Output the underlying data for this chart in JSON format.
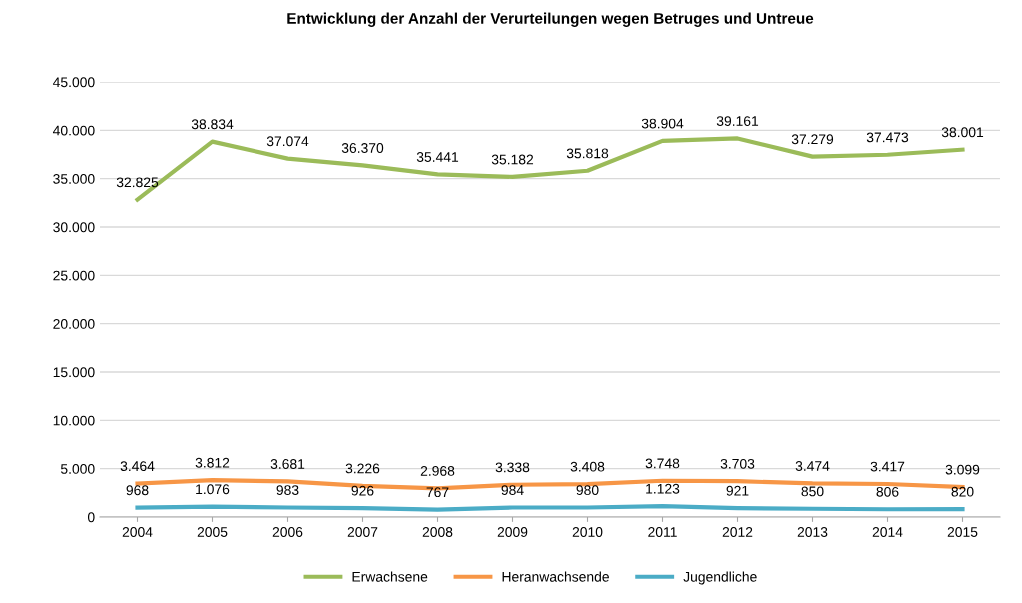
{
  "chart_data": {
    "type": "line",
    "title": "Entwicklung der Anzahl der Verurteilungen wegen Betruges und Untreue",
    "categories": [
      "2004",
      "2005",
      "2006",
      "2007",
      "2008",
      "2009",
      "2010",
      "2011",
      "2012",
      "2013",
      "2014",
      "2015"
    ],
    "series": [
      {
        "name": "Erwachsene",
        "color": "#9bbb59",
        "values": [
          32825,
          38834,
          37074,
          36370,
          35441,
          35182,
          35818,
          38904,
          39161,
          37279,
          37473,
          38001
        ],
        "value_labels": [
          "32.825",
          "38.834",
          "37.074",
          "36.370",
          "35.441",
          "35.182",
          "35.818",
          "38.904",
          "39.161",
          "37.279",
          "37.473",
          "38.001"
        ]
      },
      {
        "name": "Heranwachsende",
        "color": "#f79646",
        "values": [
          3464,
          3812,
          3681,
          3226,
          2968,
          3338,
          3408,
          3748,
          3703,
          3474,
          3417,
          3099
        ],
        "value_labels": [
          "3.464",
          "3.812",
          "3.681",
          "3.226",
          "2.968",
          "3.338",
          "3.408",
          "3.748",
          "3.703",
          "3.474",
          "3.417",
          "3.099"
        ]
      },
      {
        "name": "Jugendliche",
        "color": "#4bacc6",
        "values": [
          968,
          1076,
          983,
          926,
          767,
          984,
          980,
          1123,
          921,
          850,
          806,
          820
        ],
        "value_labels": [
          "968",
          "1.076",
          "983",
          "926",
          "767",
          "984",
          "980",
          "1.123",
          "921",
          "850",
          "806",
          "820"
        ]
      }
    ],
    "ylim": [
      0,
      45000
    ],
    "yticks": [
      {
        "value": 0,
        "label": "0"
      },
      {
        "value": 5000,
        "label": "5.000"
      },
      {
        "value": 10000,
        "label": "10.000"
      },
      {
        "value": 15000,
        "label": "15.000"
      },
      {
        "value": 20000,
        "label": "20.000"
      },
      {
        "value": 25000,
        "label": "25.000"
      },
      {
        "value": 30000,
        "label": "30.000"
      },
      {
        "value": 35000,
        "label": "35.000"
      },
      {
        "value": 40000,
        "label": "40.000"
      },
      {
        "value": 45000,
        "label": "45.000"
      }
    ],
    "grid": "y",
    "legend": "bottom",
    "marker": "none",
    "line_style": "solid"
  }
}
